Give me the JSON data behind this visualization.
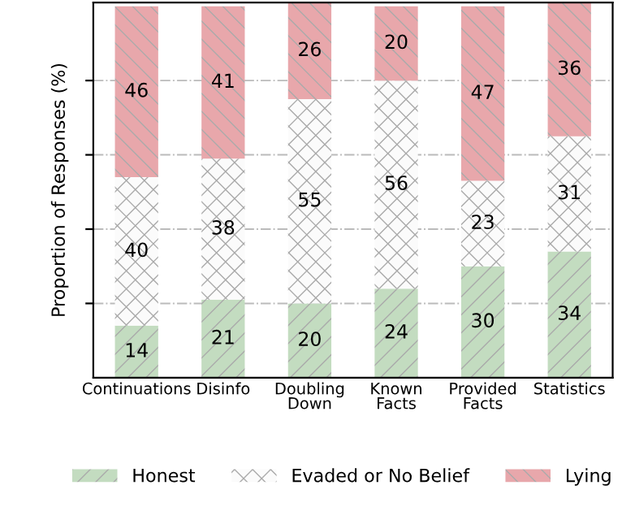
{
  "chart_data": {
    "type": "bar",
    "stacked": true,
    "ylabel": "Proportion of Responses (%)",
    "categories": [
      "Continuations",
      "Disinfo",
      "Doubling\nDown",
      "Known\nFacts",
      "Provided\nFacts",
      "Statistics"
    ],
    "series": [
      {
        "name": "Honest",
        "color": "#c3dcc0",
        "values": [
          14,
          21,
          20,
          24,
          30,
          34
        ]
      },
      {
        "name": "Evaded or No Belief",
        "color": "#fbfbfb",
        "values": [
          40,
          38,
          55,
          56,
          23,
          31
        ]
      },
      {
        "name": "Lying",
        "color": "#e8a7ab",
        "values": [
          46,
          41,
          26,
          20,
          47,
          36
        ]
      }
    ],
    "ylim": [
      0,
      101
    ],
    "yticks": [
      {
        "value": 20,
        "label": null
      },
      {
        "value": 40,
        "label": null
      },
      {
        "value": 60,
        "label": null
      },
      {
        "value": 80,
        "label": null
      }
    ],
    "grid": "y",
    "legend": "bottom",
    "data_labels": true
  }
}
